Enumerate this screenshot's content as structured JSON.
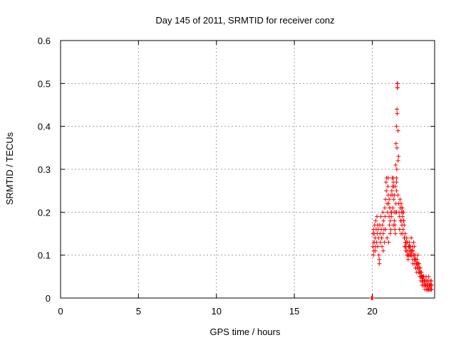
{
  "chart_data": {
    "type": "scatter",
    "title": "Day 145 of 2011, SRMTID for receiver conz",
    "xlabel": "GPS time / hours",
    "ylabel": "SRMTID / TECUs",
    "xlim": [
      0,
      24
    ],
    "ylim": [
      0,
      0.6
    ],
    "x_ticks": [
      "0",
      "5",
      "10",
      "15",
      "20"
    ],
    "y_ticks": [
      "0",
      "0.1",
      "0.2",
      "0.3",
      "0.4",
      "0.5",
      "0.6"
    ],
    "grid": true,
    "marker": "+",
    "series": [
      {
        "color": "#ff0000",
        "x": [
          19.95,
          19.98,
          20.02,
          20.05,
          20.05,
          20.07,
          20.08,
          20.1,
          20.1,
          20.12,
          20.15,
          20.18,
          20.2,
          20.22,
          20.25,
          20.28,
          20.3,
          20.32,
          20.35,
          20.38,
          20.4,
          20.42,
          20.45,
          20.48,
          20.5,
          20.52,
          20.55,
          20.58,
          20.6,
          20.62,
          20.65,
          20.68,
          20.7,
          20.72,
          20.75,
          20.78,
          20.8,
          20.82,
          20.85,
          20.88,
          20.9,
          20.92,
          20.95,
          20.98,
          21.0,
          21.02,
          21.05,
          21.08,
          21.1,
          21.12,
          21.15,
          21.18,
          21.2,
          21.22,
          21.25,
          21.28,
          21.3,
          21.32,
          21.35,
          21.38,
          21.4,
          21.42,
          21.45,
          21.48,
          21.5,
          21.52,
          21.55,
          21.58,
          21.6,
          21.62,
          21.65,
          21.68,
          21.7,
          21.72,
          21.75,
          21.78,
          21.8,
          21.82,
          21.85,
          21.88,
          21.9,
          21.92,
          21.95,
          21.98,
          22.0,
          22.02,
          22.05,
          22.08,
          22.1,
          22.12,
          22.15,
          22.18,
          22.2,
          22.22,
          22.25,
          22.28,
          22.3,
          22.32,
          22.35,
          22.38,
          22.4,
          22.42,
          22.45,
          22.48,
          22.5,
          22.52,
          22.55,
          22.58,
          22.6,
          22.62,
          22.65,
          22.68,
          22.7,
          22.72,
          22.75,
          22.78,
          22.8,
          22.82,
          22.85,
          22.88,
          22.9,
          22.92,
          22.95,
          22.98,
          23.0,
          23.02,
          23.05,
          23.08,
          23.1,
          23.12,
          23.15,
          23.18,
          23.2,
          23.22,
          23.25,
          23.28,
          23.3,
          23.32,
          23.35,
          23.38,
          23.4,
          23.42,
          23.45,
          23.48,
          23.5,
          23.52,
          23.55,
          23.58,
          23.6,
          23.62,
          23.65,
          23.68,
          23.7,
          23.72,
          23.75,
          23.78,
          23.8,
          23.82,
          20.12,
          20.2,
          20.35,
          20.45,
          20.6,
          20.7,
          20.85,
          20.95,
          21.05,
          21.15,
          21.25,
          21.35,
          21.45,
          21.55,
          21.65,
          21.75,
          21.85,
          21.95,
          22.05,
          22.15,
          22.3,
          22.4,
          22.55,
          22.65,
          22.75,
          22.85,
          22.95,
          23.05,
          23.15,
          23.25,
          23.35,
          23.45,
          23.55,
          23.65,
          23.75,
          21.5,
          21.52,
          21.55,
          21.55,
          21.57,
          21.58,
          21.6,
          21.62,
          21.6,
          21.65,
          21.55,
          21.48,
          21.42,
          21.38,
          21.35,
          21.3,
          21.2,
          21.12,
          21.08,
          21.02,
          21.9,
          21.95,
          22.0,
          21.85,
          22.08,
          22.12,
          22.18,
          22.22,
          22.28,
          22.35,
          22.45,
          22.5,
          22.6,
          22.7,
          22.8,
          22.9,
          23.0,
          23.1,
          23.2,
          23.3,
          23.4,
          23.5,
          23.6,
          23.7,
          23.8,
          23.78,
          23.72,
          23.62,
          23.52
        ],
        "y": [
          0.0,
          0.0,
          0.0,
          0.15,
          0.12,
          0.1,
          0.16,
          0.13,
          0.11,
          0.15,
          0.17,
          0.14,
          0.12,
          0.18,
          0.16,
          0.13,
          0.19,
          0.15,
          0.12,
          0.16,
          0.14,
          0.1,
          0.08,
          0.17,
          0.15,
          0.13,
          0.19,
          0.16,
          0.14,
          0.12,
          0.17,
          0.2,
          0.15,
          0.18,
          0.16,
          0.13,
          0.21,
          0.19,
          0.23,
          0.27,
          0.25,
          0.28,
          0.22,
          0.2,
          0.26,
          0.24,
          0.22,
          0.19,
          0.17,
          0.21,
          0.18,
          0.16,
          0.2,
          0.19,
          0.25,
          0.28,
          0.24,
          0.21,
          0.27,
          0.23,
          0.2,
          0.18,
          0.16,
          0.15,
          0.31,
          0.36,
          0.4,
          0.44,
          0.5,
          0.49,
          0.39,
          0.33,
          0.22,
          0.2,
          0.19,
          0.23,
          0.21,
          0.18,
          0.22,
          0.2,
          0.17,
          0.21,
          0.19,
          0.16,
          0.2,
          0.18,
          0.14,
          0.12,
          0.15,
          0.13,
          0.11,
          0.12,
          0.14,
          0.1,
          0.13,
          0.11,
          0.09,
          0.12,
          0.1,
          0.13,
          0.11,
          0.1,
          0.12,
          0.1,
          0.14,
          0.11,
          0.1,
          0.12,
          0.09,
          0.11,
          0.13,
          0.1,
          0.12,
          0.08,
          0.1,
          0.07,
          0.09,
          0.08,
          0.06,
          0.09,
          0.07,
          0.1,
          0.08,
          0.06,
          0.08,
          0.07,
          0.05,
          0.07,
          0.06,
          0.04,
          0.06,
          0.05,
          0.03,
          0.05,
          0.04,
          0.03,
          0.05,
          0.04,
          0.03,
          0.02,
          0.04,
          0.03,
          0.05,
          0.02,
          0.04,
          0.03,
          0.02,
          0.03,
          0.04,
          0.02,
          0.03,
          0.02,
          0.03,
          0.04,
          0.02,
          0.03,
          0.02,
          0.03,
          0.13,
          0.11,
          0.17,
          0.09,
          0.14,
          0.11,
          0.16,
          0.14,
          0.13,
          0.15,
          0.2,
          0.17,
          0.17,
          0.2,
          0.24,
          0.16,
          0.18,
          0.15,
          0.17,
          0.13,
          0.1,
          0.12,
          0.11,
          0.1,
          0.09,
          0.08,
          0.07,
          0.06,
          0.05,
          0.05,
          0.04,
          0.03,
          0.02,
          0.03,
          0.02,
          0.2,
          0.22,
          0.25,
          0.27,
          0.3,
          0.35,
          0.43,
          0.5,
          0.49,
          0.32,
          0.28,
          0.26,
          0.24,
          0.26,
          0.28,
          0.26,
          0.24,
          0.21,
          0.23,
          0.28,
          0.21,
          0.2,
          0.18,
          0.15,
          0.14,
          0.12,
          0.11,
          0.13,
          0.1,
          0.12,
          0.11,
          0.1,
          0.08,
          0.09,
          0.07,
          0.08,
          0.06,
          0.05,
          0.04,
          0.05,
          0.03,
          0.04,
          0.02,
          0.03,
          0.02,
          0.04,
          0.03,
          0.05,
          0.04
        ]
      }
    ]
  }
}
